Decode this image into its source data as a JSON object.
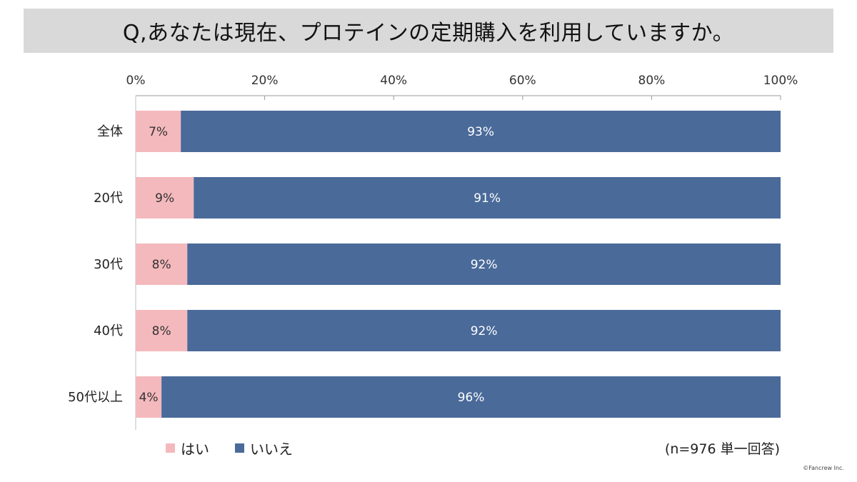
{
  "title": "Q,あなたは現在、プロテインの定期購入を利用していますか。",
  "note": "(n=976 単一回答)",
  "copyright": "©Fancrew Inc.",
  "colors": {
    "yes": "#f4b9bd",
    "no": "#4a6a99",
    "title_bg": "#d9d9d9"
  },
  "chart_data": {
    "type": "bar",
    "orientation": "horizontal",
    "stacked": true,
    "percent_axis": true,
    "categories": [
      "全体",
      "20代",
      "30代",
      "40代",
      "50代以上"
    ],
    "series": [
      {
        "name": "はい",
        "values": [
          7,
          9,
          8,
          8,
          4
        ],
        "labels": [
          "7%",
          "9%",
          "8%",
          "8%",
          "4%"
        ]
      },
      {
        "name": "いいえ",
        "values": [
          93,
          91,
          92,
          92,
          96
        ],
        "labels": [
          "93%",
          "91%",
          "92%",
          "92%",
          "96%"
        ]
      }
    ],
    "xlim": [
      0,
      100
    ],
    "xticks": [
      "0%",
      "20%",
      "40%",
      "60%",
      "80%",
      "100%"
    ],
    "xaxis_position": "top",
    "grid": false,
    "legend": "bottom-left"
  }
}
